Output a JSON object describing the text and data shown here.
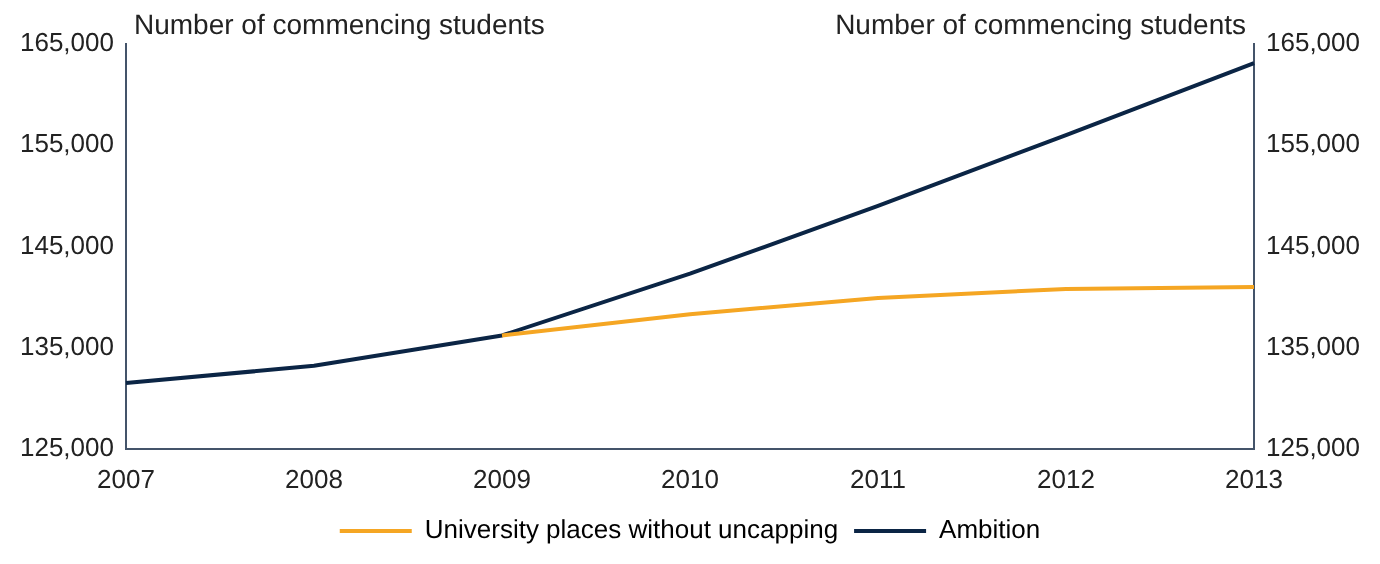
{
  "chart_data": {
    "type": "line",
    "ylabel": "Number of commencing students",
    "y2label": "Number of commencing students",
    "categories": [
      "2007",
      "2008",
      "2009",
      "2010",
      "2011",
      "2012",
      "2013"
    ],
    "series": [
      {
        "name": "University places without uncapping",
        "color": "#f5a623",
        "values": [
          null,
          null,
          136200,
          138300,
          139900,
          140800,
          141000
        ]
      },
      {
        "name": "Ambition",
        "color": "#0b2545",
        "values": [
          131500,
          133200,
          136200,
          142300,
          149000,
          156000,
          163100
        ]
      }
    ],
    "ylim": [
      125000,
      165000
    ],
    "yticks": [
      {
        "value": 125000,
        "label": "125,000"
      },
      {
        "value": 135000,
        "label": "135,000"
      },
      {
        "value": 145000,
        "label": "145,000"
      },
      {
        "value": 155000,
        "label": "155,000"
      },
      {
        "value": 165000,
        "label": "165,000"
      }
    ],
    "y2lim": [
      125000,
      165000
    ],
    "y2ticks": [
      {
        "value": 125000,
        "label": "125,000"
      },
      {
        "value": 135000,
        "label": "135,000"
      },
      {
        "value": 145000,
        "label": "145,000"
      },
      {
        "value": 155000,
        "label": "155,000"
      },
      {
        "value": 165000,
        "label": "165,000"
      }
    ],
    "grid": false,
    "legend": "bottom",
    "marker": "none"
  }
}
